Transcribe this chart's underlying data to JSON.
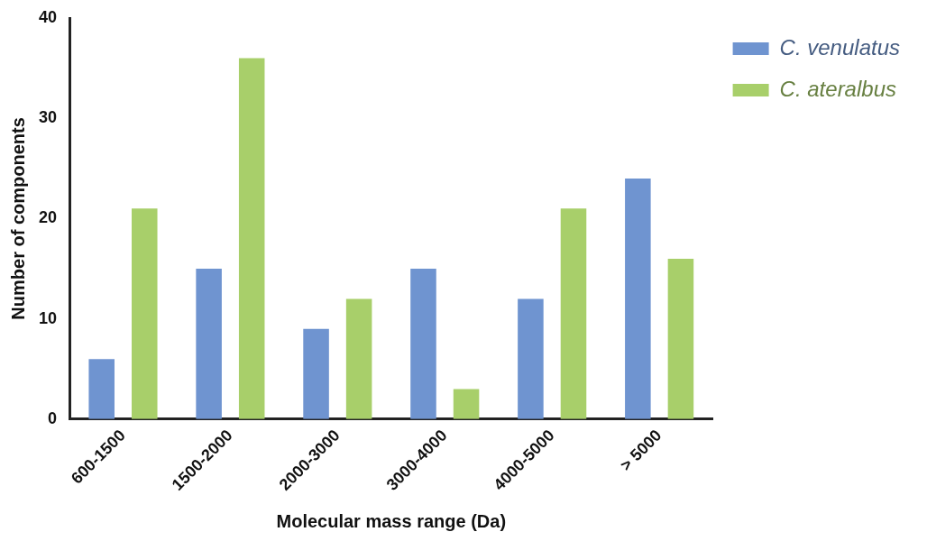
{
  "chart_data": {
    "type": "bar",
    "xlabel": "Molecular mass range (Da)",
    "ylabel": "Number of components",
    "categories": [
      "600-1500",
      "1500-2000",
      "2000-3000",
      "3000-4000",
      "4000-5000",
      "> 5000"
    ],
    "series": [
      {
        "name": "C. venulatus",
        "color": "#6f94d0",
        "values": [
          6,
          15,
          9,
          15,
          12,
          24
        ]
      },
      {
        "name": "C. ateralbus",
        "color": "#a8cf6a",
        "values": [
          21,
          36,
          12,
          3,
          21,
          16
        ]
      }
    ],
    "ylim": [
      0,
      40
    ],
    "yticks": [
      0,
      10,
      20,
      30,
      40
    ],
    "grid": false,
    "legend": "top right"
  }
}
